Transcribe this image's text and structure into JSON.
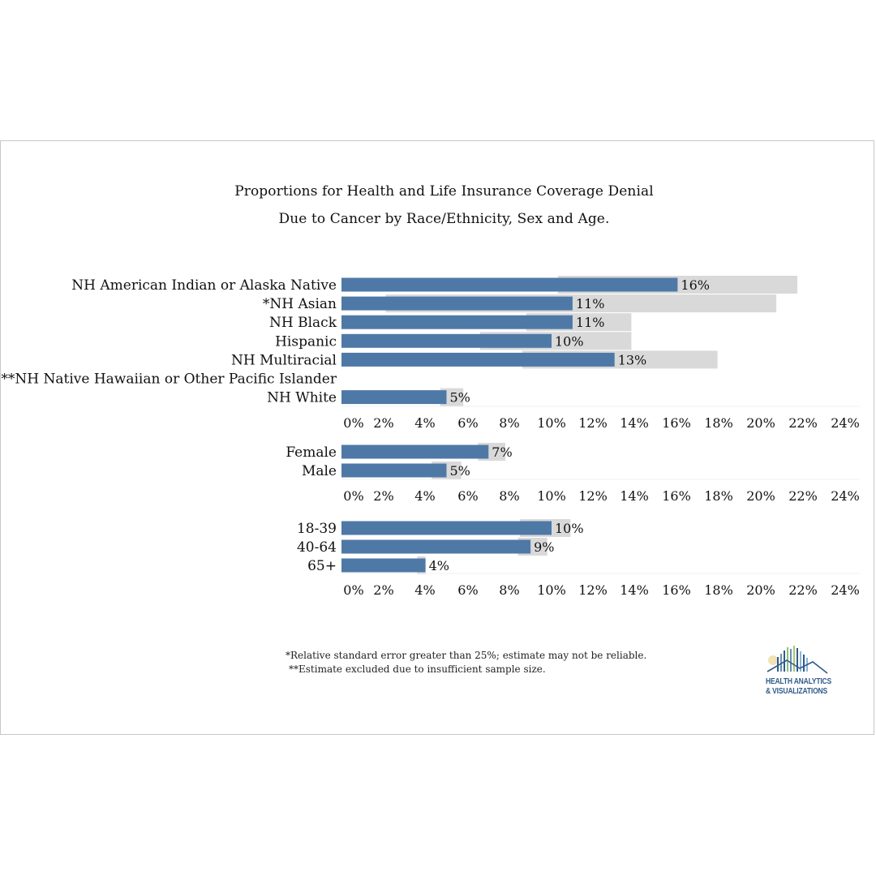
{
  "title_line1": "Proportions for Health and Life Insurance Coverage Denial",
  "title_line2": "Due to Cancer by Race/Ethnicity, Sex and Age.",
  "colors": {
    "bar": "#4e79a7",
    "ci_band": "#d9d9d9",
    "text": "#111111"
  },
  "chart_data": [
    {
      "type": "bar",
      "orientation": "horizontal",
      "categories": [
        "NH American Indian or Alaska Native",
        "*NH Asian",
        "NH Black",
        "Hispanic",
        "NH Multiracial",
        "**NH Native Hawaiian or Other Pacific Islander",
        "NH White"
      ],
      "values": [
        16,
        11,
        11,
        10,
        13,
        null,
        5
      ],
      "labels": [
        "16%",
        "11%",
        "11%",
        "10%",
        "13%",
        "",
        "5%"
      ],
      "ci_low": [
        10.3,
        2.1,
        8.8,
        6.6,
        8.6,
        null,
        4.7
      ],
      "ci_high": [
        21.7,
        20.7,
        13.8,
        13.8,
        17.9,
        null,
        5.8
      ],
      "x_ticks": [
        "0%",
        "2%",
        "4%",
        "6%",
        "8%",
        "10%",
        "12%",
        "14%",
        "16%",
        "18%",
        "20%",
        "22%",
        "24%"
      ],
      "xlim": [
        0,
        24
      ]
    },
    {
      "type": "bar",
      "orientation": "horizontal",
      "categories": [
        "Female",
        "Male"
      ],
      "values": [
        7,
        5
      ],
      "labels": [
        "7%",
        "5%"
      ],
      "ci_low": [
        6.5,
        4.3
      ],
      "ci_high": [
        7.8,
        5.7
      ],
      "x_ticks": [
        "0%",
        "2%",
        "4%",
        "6%",
        "8%",
        "10%",
        "12%",
        "14%",
        "16%",
        "18%",
        "20%",
        "22%",
        "24%"
      ],
      "xlim": [
        0,
        24
      ]
    },
    {
      "type": "bar",
      "orientation": "horizontal",
      "categories": [
        "18-39",
        "40-64",
        "65+"
      ],
      "values": [
        10,
        9,
        4
      ],
      "labels": [
        "10%",
        "9%",
        "4%"
      ],
      "ci_low": [
        8.5,
        8.4,
        3.6
      ],
      "ci_high": [
        10.9,
        9.8,
        4.0
      ],
      "x_ticks": [
        "0%",
        "2%",
        "4%",
        "6%",
        "8%",
        "10%",
        "12%",
        "14%",
        "16%",
        "18%",
        "20%",
        "22%",
        "24%"
      ],
      "xlim": [
        0,
        24
      ]
    }
  ],
  "footnotes": {
    "note1": "*Relative standard error greater than 25%; estimate may not be reliable.",
    "note2": "**Estimate excluded due to insufficient sample size."
  },
  "logo": {
    "line1": "HEALTH ANALYTICS",
    "line2": "& VISUALIZATIONS"
  }
}
